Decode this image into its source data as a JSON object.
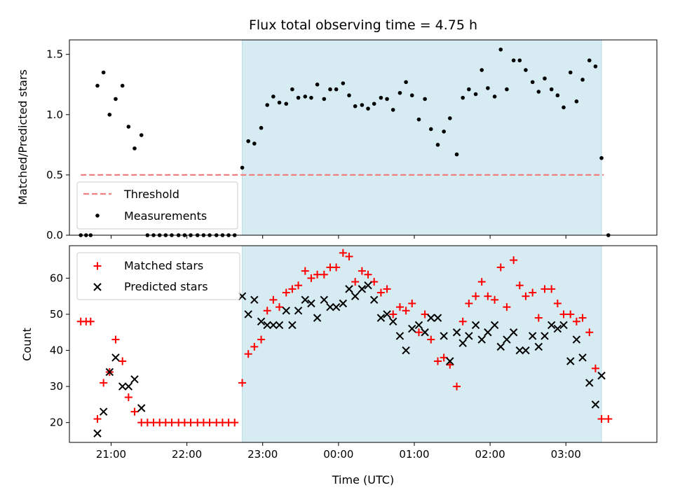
{
  "chart_data": [
    {
      "type": "scatter",
      "title": "Flux total observing time = 4.75 h",
      "xlabel": "",
      "ylabel": "Matched/Predicted stars",
      "ylim": [
        0,
        1.62
      ],
      "yticks": [
        "0.0",
        "0.5",
        "1.0",
        "1.5"
      ],
      "x_unit": "hours since 20:00 UTC",
      "xlim": [
        0.45,
        8.2
      ],
      "shaded_span": [
        2.73,
        7.47
      ],
      "legend_position": "lower-left",
      "threshold": {
        "name": "Threshold",
        "value": 0.5,
        "x_range": [
          0.6,
          7.5
        ],
        "color": "#f08080"
      },
      "series": [
        {
          "name": "Measurements",
          "color": "#000000",
          "x": [
            0.6,
            0.67,
            0.73,
            0.82,
            0.9,
            0.98,
            1.06,
            1.15,
            1.23,
            1.31,
            1.4,
            1.48,
            1.56,
            1.64,
            1.72,
            1.8,
            1.89,
            1.97,
            2.05,
            2.14,
            2.22,
            2.3,
            2.39,
            2.47,
            2.55,
            2.63,
            2.73,
            2.81,
            2.89,
            2.98,
            3.06,
            3.14,
            3.22,
            3.31,
            3.39,
            3.47,
            3.56,
            3.64,
            3.72,
            3.81,
            3.89,
            3.97,
            4.06,
            4.14,
            4.22,
            4.31,
            4.39,
            4.47,
            4.56,
            4.64,
            4.72,
            4.81,
            4.89,
            4.97,
            5.06,
            5.14,
            5.22,
            5.31,
            5.39,
            5.47,
            5.56,
            5.64,
            5.72,
            5.81,
            5.89,
            5.97,
            6.06,
            6.14,
            6.22,
            6.31,
            6.39,
            6.47,
            6.56,
            6.64,
            6.72,
            6.81,
            6.89,
            6.97,
            7.06,
            7.14,
            7.22,
            7.31,
            7.39,
            7.47,
            7.56
          ],
          "y": [
            0,
            0,
            0,
            1.24,
            1.35,
            1.0,
            1.13,
            1.24,
            0.9,
            0.72,
            0.83,
            0,
            0,
            0,
            0,
            0,
            0,
            0,
            0,
            0,
            0,
            0,
            0,
            0,
            0,
            0,
            0.56,
            0.78,
            0.76,
            0.89,
            1.08,
            1.15,
            1.1,
            1.09,
            1.21,
            1.14,
            1.15,
            1.14,
            1.25,
            1.13,
            1.21,
            1.21,
            1.26,
            1.16,
            1.07,
            1.08,
            1.05,
            1.09,
            1.14,
            1.13,
            1.04,
            1.18,
            1.27,
            1.16,
            0.96,
            1.13,
            0.88,
            0.75,
            0.86,
            0.97,
            0.67,
            1.14,
            1.21,
            1.17,
            1.37,
            1.22,
            1.15,
            1.54,
            1.21,
            1.45,
            1.45,
            1.37,
            1.27,
            1.19,
            1.3,
            1.21,
            1.16,
            1.06,
            1.35,
            1.11,
            1.29,
            1.45,
            1.4,
            0.64,
            0
          ]
        }
      ]
    },
    {
      "type": "scatter",
      "title": "",
      "xlabel": "Time (UTC)",
      "ylabel": "Count",
      "ylim": [
        14.5,
        69
      ],
      "yticks": [
        "20",
        "30",
        "40",
        "50",
        "60"
      ],
      "xticks": [
        "21:00",
        "22:00",
        "23:00",
        "00:00",
        "01:00",
        "02:00",
        "03:00"
      ],
      "x_unit": "hours since 20:00 UTC",
      "xlim": [
        0.45,
        8.2
      ],
      "shaded_span": [
        2.73,
        7.47
      ],
      "legend_position": "upper-left",
      "series": [
        {
          "name": "Matched stars",
          "marker": "plus",
          "color": "#ff0000",
          "x": [
            0.6,
            0.67,
            0.73,
            0.82,
            0.9,
            0.98,
            1.06,
            1.15,
            1.23,
            1.31,
            1.4,
            1.48,
            1.56,
            1.64,
            1.72,
            1.8,
            1.89,
            1.97,
            2.05,
            2.14,
            2.22,
            2.3,
            2.39,
            2.47,
            2.55,
            2.63,
            2.73,
            2.81,
            2.89,
            2.98,
            3.06,
            3.14,
            3.22,
            3.31,
            3.39,
            3.47,
            3.56,
            3.64,
            3.72,
            3.81,
            3.89,
            3.97,
            4.06,
            4.14,
            4.22,
            4.31,
            4.39,
            4.47,
            4.56,
            4.64,
            4.72,
            4.81,
            4.89,
            4.97,
            5.06,
            5.14,
            5.22,
            5.31,
            5.39,
            5.47,
            5.56,
            5.64,
            5.72,
            5.81,
            5.89,
            5.97,
            6.06,
            6.14,
            6.22,
            6.31,
            6.39,
            6.47,
            6.56,
            6.64,
            6.72,
            6.81,
            6.89,
            6.97,
            7.06,
            7.14,
            7.22,
            7.31,
            7.39,
            7.47,
            7.56
          ],
          "y": [
            48,
            48,
            48,
            21,
            31,
            34,
            43,
            37,
            27,
            23,
            20,
            20,
            20,
            20,
            20,
            20,
            20,
            20,
            20,
            20,
            20,
            20,
            20,
            20,
            20,
            20,
            31,
            39,
            41,
            43,
            51,
            54,
            52,
            56,
            57,
            58,
            62,
            60,
            61,
            61,
            63,
            63,
            67,
            66,
            59,
            62,
            61,
            59,
            56,
            57,
            50,
            52,
            51,
            53,
            45,
            50,
            43,
            37,
            38,
            36,
            30,
            48,
            53,
            55,
            59,
            55,
            54,
            63,
            52,
            65,
            58,
            55,
            56,
            49,
            57,
            57,
            53,
            50,
            50,
            48,
            49,
            45,
            35,
            21,
            21
          ]
        },
        {
          "name": "Predicted stars",
          "marker": "x",
          "color": "#000000",
          "x": [
            0.82,
            0.9,
            0.98,
            1.06,
            1.15,
            1.23,
            1.31,
            1.4,
            2.73,
            2.81,
            2.89,
            2.98,
            3.06,
            3.14,
            3.22,
            3.31,
            3.39,
            3.47,
            3.56,
            3.64,
            3.72,
            3.81,
            3.89,
            3.97,
            4.06,
            4.14,
            4.22,
            4.31,
            4.39,
            4.47,
            4.56,
            4.64,
            4.72,
            4.81,
            4.89,
            4.97,
            5.06,
            5.14,
            5.22,
            5.31,
            5.39,
            5.47,
            5.56,
            5.64,
            5.72,
            5.81,
            5.89,
            5.97,
            6.06,
            6.14,
            6.22,
            6.31,
            6.39,
            6.47,
            6.56,
            6.64,
            6.72,
            6.81,
            6.89,
            6.97,
            7.06,
            7.14,
            7.22,
            7.31,
            7.39,
            7.47
          ],
          "y": [
            17,
            23,
            34,
            38,
            30,
            30,
            32,
            24,
            55,
            50,
            54,
            48,
            47,
            47,
            47,
            51,
            47,
            51,
            54,
            53,
            49,
            54,
            52,
            52,
            53,
            57,
            55,
            57,
            58,
            54,
            49,
            50,
            48,
            44,
            40,
            46,
            47,
            45,
            49,
            49,
            44,
            37,
            45,
            42,
            44,
            47,
            43,
            45,
            47,
            41,
            43,
            45,
            40,
            40,
            44,
            41,
            44,
            47,
            46,
            47,
            37,
            43,
            38,
            31,
            25,
            33
          ]
        }
      ]
    }
  ]
}
